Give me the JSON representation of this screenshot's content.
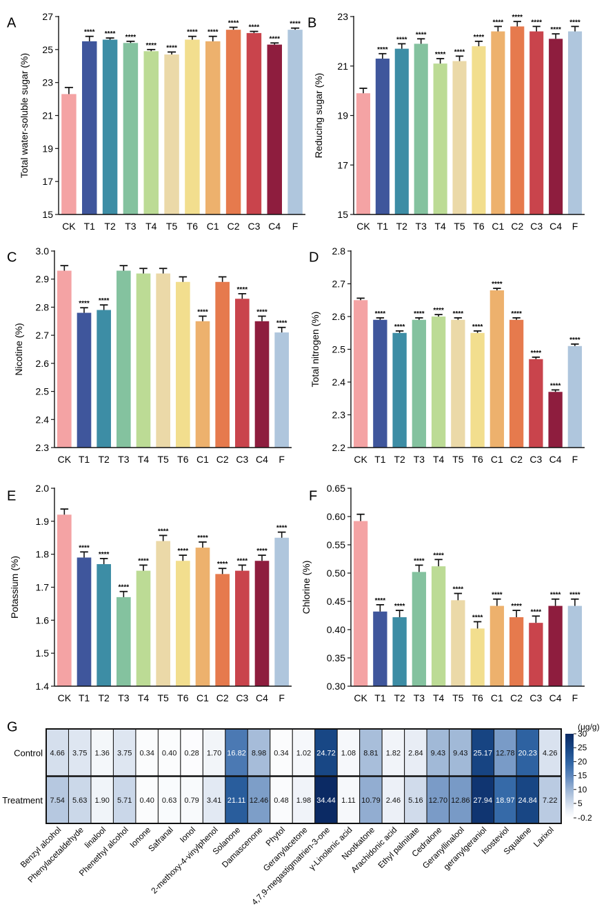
{
  "categories": [
    "CK",
    "T1",
    "T2",
    "T3",
    "T4",
    "T5",
    "T6",
    "C1",
    "C2",
    "C3",
    "C4",
    "F"
  ],
  "bar_colors": [
    "#F4A3A4",
    "#3F569C",
    "#3D8DA5",
    "#84C29F",
    "#BCDB95",
    "#EBD9A8",
    "#F2DE8E",
    "#EDB16D",
    "#E67A4D",
    "#C9444C",
    "#8E1D3E",
    "#AFC6DD"
  ],
  "error_color": "#111111",
  "chart_data": [
    {
      "panel_label": "A",
      "type": "bar",
      "title": "",
      "xlabel": "",
      "ylabel": "Total water-soluble sugar (%)",
      "ylim": [
        15,
        27
      ],
      "yticks": [
        "15",
        "17",
        "19",
        "21",
        "23",
        "25",
        "27"
      ],
      "values": [
        22.3,
        25.5,
        25.6,
        25.4,
        24.9,
        24.7,
        25.6,
        25.5,
        26.2,
        26.0,
        25.3,
        26.2
      ],
      "errors": [
        0.4,
        0.3,
        0.1,
        0.1,
        0.1,
        0.15,
        0.2,
        0.3,
        0.15,
        0.1,
        0.1,
        0.1
      ],
      "annotations": [
        "",
        "****",
        "****",
        "****",
        "****",
        "****",
        "****",
        "****",
        "****",
        "****",
        "****",
        "****"
      ]
    },
    {
      "panel_label": "B",
      "type": "bar",
      "title": "",
      "xlabel": "",
      "ylabel": "Reducing sugar (%)",
      "ylim": [
        15,
        23
      ],
      "yticks": [
        "15",
        "17",
        "19",
        "21",
        "23"
      ],
      "values": [
        19.9,
        21.3,
        21.7,
        21.9,
        21.1,
        21.2,
        21.8,
        22.4,
        22.6,
        22.4,
        22.1,
        22.4
      ],
      "errors": [
        0.2,
        0.2,
        0.2,
        0.2,
        0.2,
        0.2,
        0.2,
        0.2,
        0.2,
        0.2,
        0.2,
        0.2
      ],
      "annotations": [
        "",
        "****",
        "****",
        "****",
        "****",
        "****",
        "****",
        "****",
        "****",
        "****",
        "****",
        "****"
      ]
    },
    {
      "panel_label": "C",
      "type": "bar",
      "title": "",
      "xlabel": "",
      "ylabel": "Nicotine (%)",
      "ylim": [
        2.3,
        3.0
      ],
      "yticks": [
        "2.3",
        "2.4",
        "2.5",
        "2.6",
        "2.7",
        "2.8",
        "2.9",
        "3.0"
      ],
      "values": [
        2.93,
        2.78,
        2.79,
        2.93,
        2.92,
        2.92,
        2.89,
        2.75,
        2.89,
        2.83,
        2.75,
        2.71
      ],
      "errors": [
        0.018,
        0.018,
        0.018,
        0.018,
        0.018,
        0.018,
        0.018,
        0.018,
        0.018,
        0.018,
        0.018,
        0.018
      ],
      "annotations": [
        "",
        "****",
        "****",
        "",
        "",
        "",
        "",
        "****",
        "",
        "****",
        "****",
        "****"
      ]
    },
    {
      "panel_label": "D",
      "type": "bar",
      "title": "",
      "xlabel": "",
      "ylabel": "Total nitrogen (%)",
      "ylim": [
        2.2,
        2.8
      ],
      "yticks": [
        "2.2",
        "2.3",
        "2.4",
        "2.5",
        "2.6",
        "2.7",
        "2.8"
      ],
      "values": [
        2.65,
        2.59,
        2.55,
        2.59,
        2.6,
        2.59,
        2.55,
        2.68,
        2.59,
        2.47,
        2.37,
        2.51
      ],
      "errors": [
        0.006,
        0.006,
        0.006,
        0.006,
        0.006,
        0.006,
        0.006,
        0.006,
        0.006,
        0.006,
        0.006,
        0.006
      ],
      "annotations": [
        "",
        "****",
        "****",
        "****",
        "****",
        "****",
        "****",
        "****",
        "****",
        "****",
        "****",
        "****"
      ]
    },
    {
      "panel_label": "E",
      "type": "bar",
      "title": "",
      "xlabel": "",
      "ylabel": "Potassium (%)",
      "ylim": [
        1.4,
        2.0
      ],
      "yticks": [
        "1.4",
        "1.5",
        "1.6",
        "1.7",
        "1.8",
        "1.9",
        "2.0"
      ],
      "values": [
        1.92,
        1.79,
        1.77,
        1.67,
        1.75,
        1.84,
        1.78,
        1.82,
        1.74,
        1.75,
        1.78,
        1.85
      ],
      "errors": [
        0.017,
        0.017,
        0.017,
        0.017,
        0.017,
        0.017,
        0.017,
        0.017,
        0.017,
        0.017,
        0.017,
        0.017
      ],
      "annotations": [
        "",
        "****",
        "****",
        "****",
        "****",
        "****",
        "****",
        "****",
        "****",
        "****",
        "****",
        "****"
      ]
    },
    {
      "panel_label": "F",
      "type": "bar",
      "title": "",
      "xlabel": "",
      "ylabel": "Chlorine (%)",
      "ylim": [
        0.3,
        0.65
      ],
      "yticks": [
        "0.30",
        "0.35",
        "0.40",
        "0.45",
        "0.50",
        "0.55",
        "0.60",
        "0.65"
      ],
      "values": [
        0.592,
        0.432,
        0.422,
        0.502,
        0.512,
        0.452,
        0.402,
        0.442,
        0.422,
        0.412,
        0.442,
        0.442
      ],
      "errors": [
        0.012,
        0.012,
        0.012,
        0.012,
        0.012,
        0.012,
        0.012,
        0.012,
        0.012,
        0.012,
        0.012,
        0.012
      ],
      "annotations": [
        "",
        "****",
        "****",
        "****",
        "****",
        "****",
        "****",
        "****",
        "****",
        "****",
        "****",
        "****"
      ]
    },
    {
      "panel_label": "G",
      "type": "heatmap",
      "rows": [
        "Control",
        "Treatment"
      ],
      "columns": [
        "Benzyl alcohol",
        "Phenylacetaldehyde",
        "linalool",
        "Phenethyl alcohol",
        "Ionone",
        "Safranal",
        "Ionol",
        "2-methoxy-4-vinylphenol",
        "Solanone",
        "Damascenone",
        "Phytol",
        "Geranylacetone",
        "4,7,9-megastigmatrien-3-one",
        "γ-Linolenic acid",
        "Nootkatone",
        "Arachidonic acid",
        "Ethyl palmitate",
        "Cedralone",
        "Geranyllinalool",
        "geranylgeraniol",
        "Isosteviol",
        "Squalene",
        "Larixol"
      ],
      "values": [
        [
          4.66,
          3.75,
          1.36,
          3.75,
          0.34,
          0.4,
          0.28,
          1.7,
          16.82,
          8.98,
          0.34,
          1.02,
          24.72,
          1.08,
          8.81,
          1.82,
          2.84,
          9.43,
          9.43,
          25.17,
          12.78,
          20.23,
          4.26
        ],
        [
          7.54,
          5.63,
          1.9,
          5.71,
          0.4,
          0.63,
          0.79,
          3.41,
          21.11,
          12.46,
          0.48,
          1.98,
          34.44,
          1.11,
          10.79,
          2.46,
          5.16,
          12.7,
          12.86,
          27.94,
          18.97,
          24.84,
          7.22
        ]
      ],
      "value_labels": [
        [
          "4.66",
          "3.75",
          "1.36",
          "3.75",
          "0.34",
          "0.40",
          "0.28",
          "1.70",
          "16.82",
          "8.98",
          "0.34",
          "1.02",
          "24.72",
          "1.08",
          "8.81",
          "1.82",
          "2.84",
          "9.43",
          "9.43",
          "25.17",
          "12.78",
          "20.23",
          "4.26"
        ],
        [
          "7.54",
          "5.63",
          "1.90",
          "5.71",
          "0.40",
          "0.63",
          "0.79",
          "3.41",
          "21.11",
          "12.46",
          "0.48",
          "1.98",
          "34.44",
          "1.11",
          "10.79",
          "2.46",
          "5.16",
          "12.70",
          "12.86",
          "27.94",
          "18.97",
          "24.84",
          "7.22"
        ]
      ],
      "colorbar": {
        "unit": "(μg/g)",
        "ticks": [
          "30",
          "25",
          "20",
          "15",
          "10",
          "5",
          "-0.2"
        ],
        "tick_values": [
          30,
          25,
          20,
          15,
          10,
          5,
          -0.2
        ],
        "range": [
          -0.2,
          30
        ],
        "low_color": "#FFFFFF",
        "high_color": "#0B2A64"
      }
    }
  ]
}
